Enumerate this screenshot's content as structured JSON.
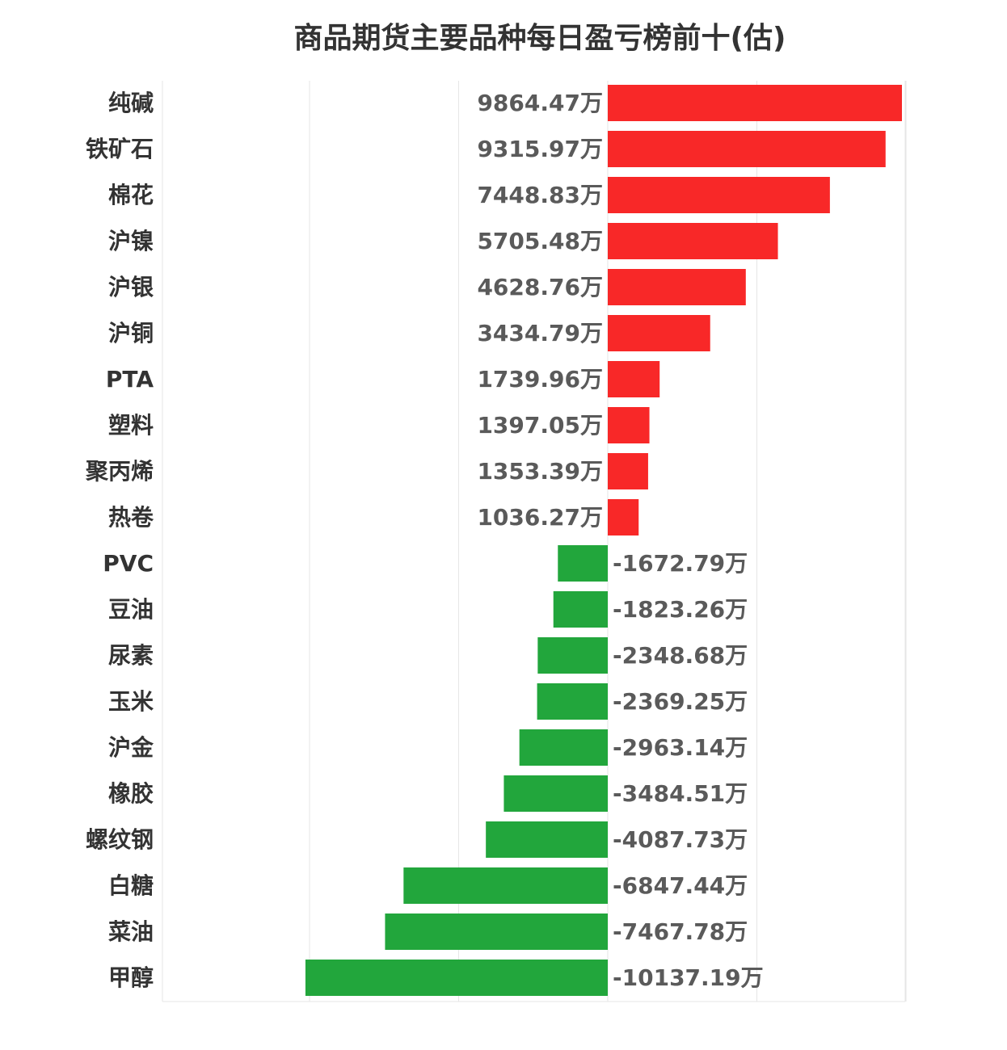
{
  "chart_data": {
    "type": "bar",
    "orientation": "horizontal",
    "title": "商品期货主要品种每日盈亏榜前十(估)",
    "unit": "万",
    "colors": {
      "positive": "#f82828",
      "negative": "#22a63c"
    },
    "grid": true,
    "xlim": [
      -10000,
      10000
    ],
    "categories": [
      "纯碱",
      "铁矿石",
      "棉花",
      "沪镍",
      "沪银",
      "沪铜",
      "PTA",
      "塑料",
      "聚丙烯",
      "热卷",
      "PVC",
      "豆油",
      "尿素",
      "玉米",
      "沪金",
      "橡胶",
      "螺纹钢",
      "白糖",
      "菜油",
      "甲醇"
    ],
    "values": [
      9864.47,
      9315.97,
      7448.83,
      5705.48,
      4628.76,
      3434.79,
      1739.96,
      1397.05,
      1353.39,
      1036.27,
      -1672.79,
      -1823.26,
      -2348.68,
      -2369.25,
      -2963.14,
      -3484.51,
      -4087.73,
      -6847.44,
      -7467.78,
      -10137.19
    ],
    "labels": [
      "9864.47万",
      "9315.97万",
      "7448.83万",
      "5705.48万",
      "4628.76万",
      "3434.79万",
      "1739.96万",
      "1397.05万",
      "1353.39万",
      "1036.27万",
      "-1672.79万",
      "-1823.26万",
      "-2348.68万",
      "-2369.25万",
      "-2963.14万",
      "-3484.51万",
      "-4087.73万",
      "-6847.44万",
      "-7467.78万",
      "-10137.19万"
    ]
  }
}
